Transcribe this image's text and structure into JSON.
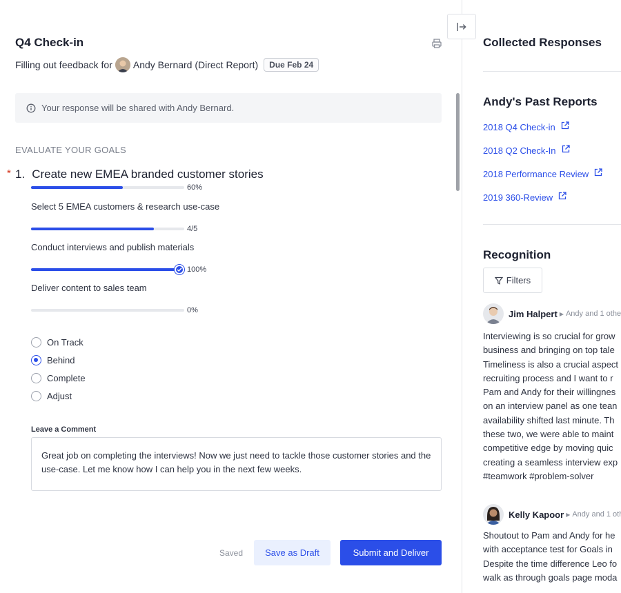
{
  "header": {
    "title": "Q4 Check-in",
    "subtitle_prefix": "Filling out feedback for",
    "person": "Andy Bernard (Direct Report)",
    "due": "Due Feb 24"
  },
  "info": {
    "text": "Your response will be shared with Andy Bernard."
  },
  "section": {
    "heading": "EVALUATE YOUR GOALS"
  },
  "goal": {
    "required_mark": "*",
    "number": "1.",
    "title": "Create new EMEA branded customer stories",
    "progress_label": "60%",
    "progress": 0.6,
    "subgoals": [
      {
        "label": "Select 5 EMEA customers & research use-case",
        "progress_label": "4/5",
        "progress": 0.8
      },
      {
        "label": "Conduct interviews and publish materials",
        "progress_label": "100%",
        "progress": 1.0
      },
      {
        "label": "Deliver content to sales team",
        "progress_label": "0%",
        "progress": 0.0
      }
    ],
    "status_options": [
      "On Track",
      "Behind",
      "Complete",
      "Adjust"
    ],
    "status_selected": "Behind"
  },
  "comment": {
    "label": "Leave a Comment",
    "text": "Great job on completing the interviews! Now we just need to tackle those customer stories and the use-case. Let me know how I can help you in the next few weeks."
  },
  "footer": {
    "saved": "Saved",
    "draft_label": "Save as Draft",
    "submit_label": "Submit and Deliver"
  },
  "sidebar": {
    "title": "Collected Responses",
    "past_heading": "Andy's Past Reports",
    "past_reports": [
      "2018 Q4 Check-in",
      "2018 Q2 Check-In",
      "2018 Performance Review",
      "2019 360-Review"
    ],
    "recognition_heading": "Recognition",
    "filters_label": "Filters",
    "recognitions": [
      {
        "name": "Jim Halpert",
        "meta": "Andy and 1 othe",
        "lines": [
          "Interviewing is so crucial for grow",
          "business and bringing on top tale",
          "Timeliness is also a crucial aspect",
          "recruiting process and I want to r",
          "Pam and Andy for their willingnes",
          "on an interview panel as one tean",
          "availability shifted last minute. Th",
          "these two, we were able to maint",
          "competitive edge by moving quic",
          "creating a seamless interview exp",
          "#teamwork #problem-solver"
        ]
      },
      {
        "name": "Kelly Kapoor",
        "meta": "Andy and 1 oth",
        "lines": [
          "Shoutout to Pam and Andy for he",
          "with acceptance test for Goals in",
          "Despite the time difference Leo fo",
          "walk as through goals page moda"
        ]
      }
    ]
  }
}
